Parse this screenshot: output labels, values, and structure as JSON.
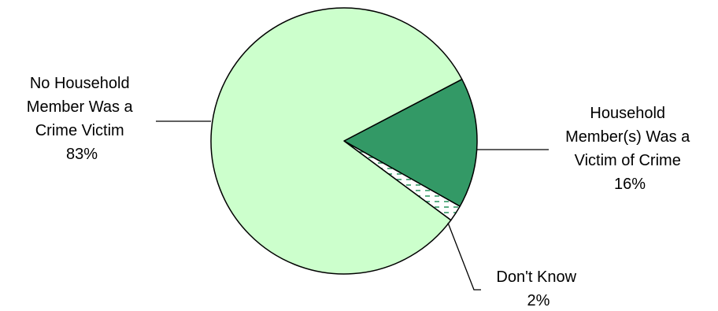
{
  "chart_data": {
    "type": "pie",
    "title": "",
    "legend": "none",
    "slices": [
      {
        "key": "no_victim",
        "label_lines": [
          "No Household",
          "Member Was a",
          "Crime Victim"
        ],
        "value_label": "83%",
        "value": 83,
        "color": "#ccffcc",
        "pattern": "solid"
      },
      {
        "key": "victim",
        "label_lines": [
          "Household",
          "Member(s) Was a",
          "Victim of Crime"
        ],
        "value_label": "16%",
        "value": 16,
        "color": "#339966",
        "pattern": "solid"
      },
      {
        "key": "dont_know",
        "label_lines": [
          "Don't Know"
        ],
        "value_label": "2%",
        "value": 2,
        "color": "#339966",
        "pattern": "dashed-hatch"
      }
    ]
  }
}
